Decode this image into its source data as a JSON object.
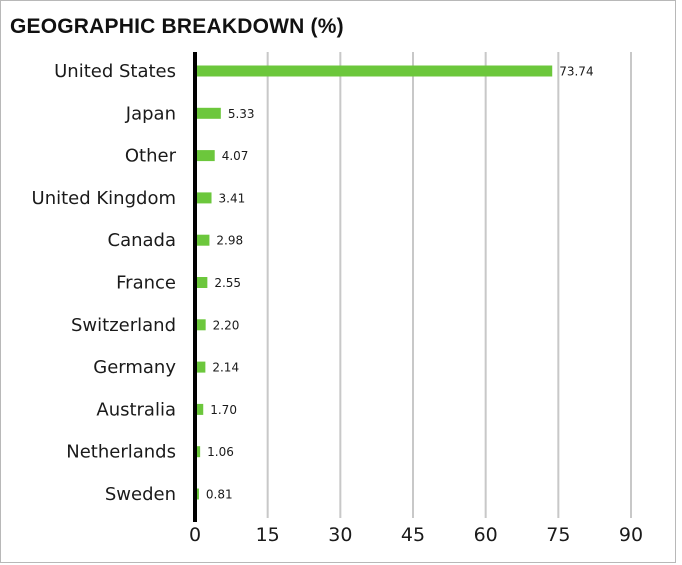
{
  "chart_data": {
    "type": "bar",
    "orientation": "horizontal",
    "title": "GEOGRAPHIC BREAKDOWN (%)",
    "categories": [
      "United States",
      "Japan",
      "Other",
      "United Kingdom",
      "Canada",
      "France",
      "Switzerland",
      "Germany",
      "Australia",
      "Netherlands",
      "Sweden"
    ],
    "values": [
      73.74,
      5.33,
      4.07,
      3.41,
      2.98,
      2.55,
      2.2,
      2.14,
      1.7,
      1.06,
      0.81
    ],
    "value_labels": [
      "73.74",
      "5.33",
      "4.07",
      "3.41",
      "2.98",
      "2.55",
      "2.20",
      "2.14",
      "1.70",
      "1.06",
      "0.81"
    ],
    "xlim": [
      0,
      90
    ],
    "xticks": [
      0,
      15,
      30,
      45,
      60,
      75,
      90
    ],
    "xtick_labels": [
      "0",
      "15",
      "30",
      "45",
      "60",
      "75",
      "90"
    ],
    "xlabel": "",
    "ylabel": "",
    "grid": "vertical",
    "legend": "none",
    "colors": {
      "bar": "#6cc73c",
      "grid": "#c8c8c8",
      "axis": "#000000"
    }
  }
}
